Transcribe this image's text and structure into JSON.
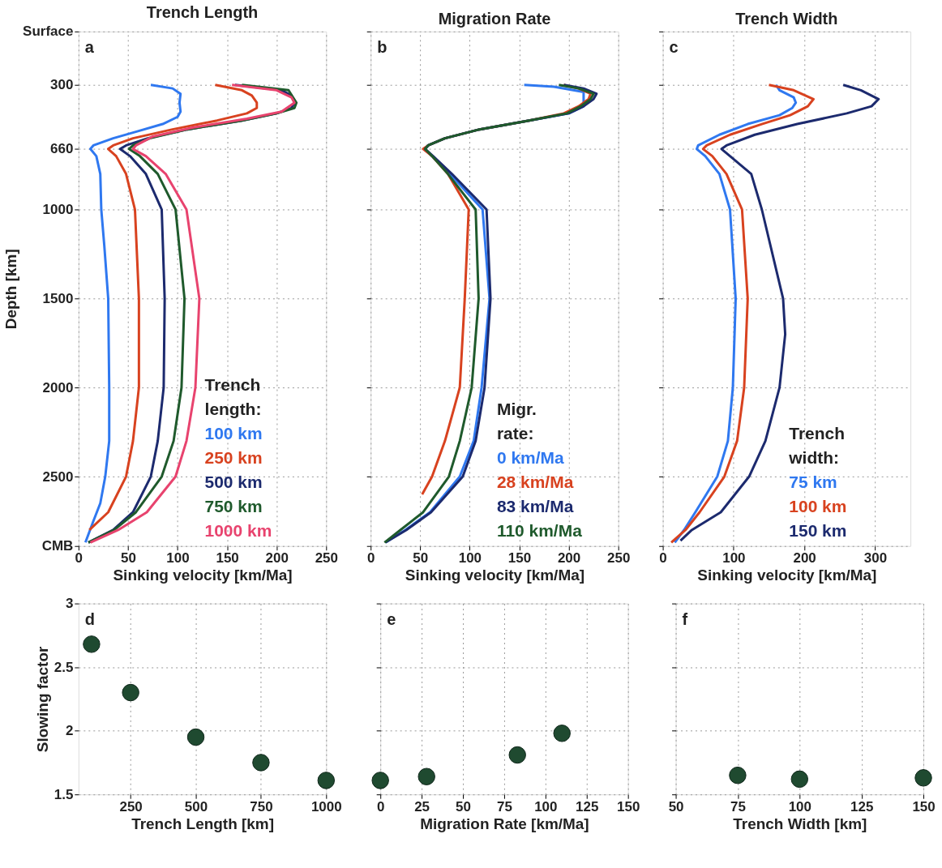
{
  "chart_data": [
    {
      "type": "line",
      "title": "Trench Length",
      "xlabel": "Sinking velocity [km/Ma]",
      "ylabel": "Depth [km]",
      "xlim": [
        0,
        250
      ],
      "xticks": [
        0,
        50,
        100,
        150,
        200,
        250
      ],
      "ylim": [
        2890,
        0
      ],
      "yticks": [
        {
          "value": 0,
          "label": "Surface"
        },
        300,
        660,
        1000,
        1500,
        2000,
        2500,
        {
          "value": 2890,
          "label": "CMB"
        }
      ],
      "grid": true,
      "legend": "bottom right",
      "legend_title": "Trench length:",
      "annotations": [
        "a"
      ],
      "series": [
        {
          "name": "100 km",
          "color": "#2f78f0",
          "x": [
            73,
            95,
            103,
            102,
            103,
            100,
            85,
            60,
            35,
            15,
            12,
            18,
            22,
            23,
            26,
            30,
            31,
            31,
            27,
            22,
            15,
            7
          ],
          "values": [
            300,
            320,
            350,
            400,
            450,
            480,
            520,
            560,
            600,
            640,
            660,
            700,
            800,
            1000,
            1200,
            1500,
            2000,
            2300,
            2500,
            2650,
            2750,
            2870
          ]
        },
        {
          "name": "250 km",
          "color": "#d8421f",
          "x": [
            138,
            165,
            175,
            180,
            180,
            170,
            140,
            95,
            55,
            35,
            30,
            38,
            48,
            57,
            61,
            61,
            55,
            48,
            30,
            11
          ],
          "values": [
            300,
            330,
            360,
            400,
            430,
            460,
            500,
            550,
            600,
            640,
            660,
            700,
            800,
            1000,
            1500,
            2000,
            2300,
            2500,
            2700,
            2800
          ]
        },
        {
          "name": "500 km",
          "color": "#1c2a6e",
          "x": [
            158,
            205,
            215,
            218,
            215,
            200,
            165,
            110,
            70,
            48,
            42,
            52,
            68,
            84,
            87,
            86,
            80,
            73,
            55,
            35,
            10
          ],
          "values": [
            300,
            330,
            360,
            400,
            430,
            460,
            500,
            550,
            600,
            640,
            660,
            700,
            800,
            1000,
            1500,
            2000,
            2300,
            2500,
            2700,
            2800,
            2870
          ]
        },
        {
          "name": "750 km",
          "color": "#1f5a2c",
          "x": [
            165,
            212,
            220,
            218,
            200,
            165,
            110,
            72,
            55,
            51,
            62,
            80,
            98,
            107,
            104,
            96,
            84,
            58,
            36,
            10
          ],
          "values": [
            300,
            330,
            400,
            430,
            460,
            500,
            550,
            600,
            640,
            660,
            700,
            800,
            1000,
            1500,
            2000,
            2300,
            2500,
            2700,
            2800,
            2870
          ]
        },
        {
          "name": "1000 km",
          "color": "#e8436e",
          "x": [
            155,
            200,
            215,
            218,
            205,
            170,
            115,
            75,
            58,
            55,
            68,
            88,
            109,
            122,
            118,
            109,
            98,
            69,
            40,
            12
          ],
          "values": [
            300,
            330,
            370,
            400,
            450,
            490,
            540,
            590,
            640,
            660,
            700,
            800,
            1000,
            1500,
            2000,
            2300,
            2500,
            2700,
            2800,
            2870
          ]
        }
      ]
    },
    {
      "type": "line",
      "title": "Migration Rate",
      "xlabel": "Sinking velocity [km/Ma]",
      "xlim": [
        0,
        250
      ],
      "xticks": [
        0,
        50,
        100,
        150,
        200,
        250
      ],
      "ylim": [
        2890,
        0
      ],
      "yticks": [
        0,
        300,
        660,
        1000,
        1500,
        2000,
        2500,
        2890
      ],
      "grid": true,
      "tick_labels": "x",
      "legend": "bottom right",
      "legend_title": "Migr. rate:",
      "annotations": [
        "b"
      ],
      "series": [
        {
          "name": "0 km/Ma",
          "color": "#2f78f0",
          "x": [
            155,
            185,
            215,
            215,
            215,
            200,
            160,
            110,
            75,
            58,
            55,
            62,
            80,
            113,
            120,
            112,
            104,
            90,
            60,
            35,
            15
          ],
          "values": [
            300,
            310,
            340,
            380,
            420,
            460,
            500,
            550,
            600,
            640,
            660,
            700,
            800,
            1000,
            1500,
            2000,
            2300,
            2500,
            2700,
            2800,
            2870
          ]
        },
        {
          "name": "28 km/Ma",
          "color": "#d8421f",
          "x": [
            195,
            210,
            222,
            220,
            210,
            195,
            160,
            110,
            75,
            58,
            53,
            62,
            78,
            99,
            95,
            90,
            75,
            62,
            52
          ],
          "values": [
            300,
            320,
            350,
            380,
            420,
            460,
            500,
            550,
            600,
            640,
            660,
            700,
            800,
            1000,
            1500,
            2000,
            2300,
            2500,
            2600
          ]
        },
        {
          "name": "83 km/Ma",
          "color": "#1c2a6e",
          "x": [
            195,
            215,
            228,
            225,
            215,
            200,
            160,
            110,
            75,
            58,
            55,
            63,
            82,
            117,
            121,
            115,
            106,
            93,
            61,
            36,
            15
          ],
          "values": [
            300,
            320,
            350,
            380,
            420,
            460,
            500,
            550,
            600,
            640,
            660,
            700,
            800,
            1000,
            1500,
            2000,
            2300,
            2500,
            2700,
            2800,
            2870
          ]
        },
        {
          "name": "110 km/Ma",
          "color": "#1f5a2c",
          "x": [
            190,
            210,
            225,
            222,
            212,
            198,
            160,
            110,
            75,
            58,
            55,
            62,
            78,
            106,
            109,
            102,
            90,
            79,
            53,
            30,
            14
          ],
          "values": [
            300,
            320,
            350,
            380,
            420,
            460,
            500,
            550,
            600,
            640,
            660,
            700,
            800,
            1000,
            1500,
            2000,
            2300,
            2500,
            2700,
            2800,
            2870
          ]
        }
      ]
    },
    {
      "type": "line",
      "title": "Trench Width",
      "xlabel": "Sinking velocity [km/Ma]",
      "xlim": [
        0,
        350
      ],
      "xticks": [
        0,
        100,
        200,
        300
      ],
      "ylim": [
        2890,
        0
      ],
      "yticks": [
        0,
        300,
        660,
        1000,
        1500,
        2000,
        2500,
        2890
      ],
      "grid": true,
      "tick_labels": "x",
      "legend": "bottom right",
      "legend_title": "Trench width:",
      "annotations": [
        "c"
      ],
      "series": [
        {
          "name": "75 km",
          "color": "#2f78f0",
          "x": [
            160,
            165,
            185,
            188,
            183,
            165,
            120,
            80,
            50,
            48,
            60,
            80,
            95,
            103,
            99,
            92,
            77,
            46,
            30,
            17
          ],
          "values": [
            300,
            330,
            370,
            400,
            430,
            470,
            520,
            580,
            640,
            660,
            700,
            800,
            1000,
            1500,
            2000,
            2300,
            2500,
            2700,
            2800,
            2870
          ]
        },
        {
          "name": "100 km",
          "color": "#d8421f",
          "x": [
            150,
            185,
            213,
            205,
            180,
            140,
            95,
            62,
            57,
            70,
            90,
            112,
            120,
            115,
            105,
            87,
            52,
            32,
            12
          ],
          "values": [
            300,
            330,
            380,
            420,
            470,
            520,
            580,
            640,
            660,
            700,
            800,
            1000,
            1500,
            2000,
            2300,
            2500,
            2700,
            2800,
            2870
          ]
        },
        {
          "name": "150 km",
          "color": "#1c2a6e",
          "x": [
            255,
            280,
            305,
            295,
            260,
            190,
            130,
            90,
            83,
            95,
            125,
            140,
            170,
            173,
            165,
            145,
            122,
            82,
            41,
            25
          ],
          "values": [
            300,
            330,
            380,
            420,
            460,
            520,
            580,
            640,
            660,
            700,
            800,
            1000,
            1500,
            1700,
            2000,
            2300,
            2500,
            2700,
            2800,
            2860
          ]
        }
      ]
    },
    {
      "type": "scatter",
      "xlabel": "Trench Length [km]",
      "ylabel": "Slowing factor",
      "xlim": [
        50,
        1000
      ],
      "xticks": [
        250,
        500,
        750,
        1000
      ],
      "ylim": [
        1.5,
        3
      ],
      "yticks": [
        1.5,
        2,
        2.5,
        3
      ],
      "grid": true,
      "marker": "circle",
      "annotations": [
        "d"
      ],
      "x": [
        100,
        250,
        500,
        750,
        1000
      ],
      "values": [
        2.68,
        2.3,
        1.95,
        1.75,
        1.61
      ],
      "color": "#1f4a30"
    },
    {
      "type": "scatter",
      "xlabel": "Migration Rate [km/Ma]",
      "xlim": [
        0,
        150
      ],
      "xticks": [
        0,
        25,
        50,
        75,
        100,
        125,
        150
      ],
      "ylim": [
        1.5,
        3
      ],
      "yticks": [
        1.5,
        2,
        2.5,
        3
      ],
      "grid": true,
      "tick_labels": "x",
      "marker": "circle",
      "annotations": [
        "e"
      ],
      "x": [
        0,
        28,
        83,
        110
      ],
      "values": [
        1.61,
        1.64,
        1.81,
        1.98
      ],
      "color": "#1f4a30"
    },
    {
      "type": "scatter",
      "xlabel": "Trench Width [km]",
      "xlim": [
        50,
        150
      ],
      "xticks": [
        50,
        75,
        100,
        125,
        150
      ],
      "ylim": [
        1.5,
        3
      ],
      "yticks": [
        1.5,
        2,
        2.5,
        3
      ],
      "grid": true,
      "tick_labels": "x",
      "marker": "circle",
      "annotations": [
        "f"
      ],
      "x": [
        75,
        100,
        150
      ],
      "values": [
        1.65,
        1.62,
        1.63
      ],
      "color": "#1f4a30"
    }
  ]
}
